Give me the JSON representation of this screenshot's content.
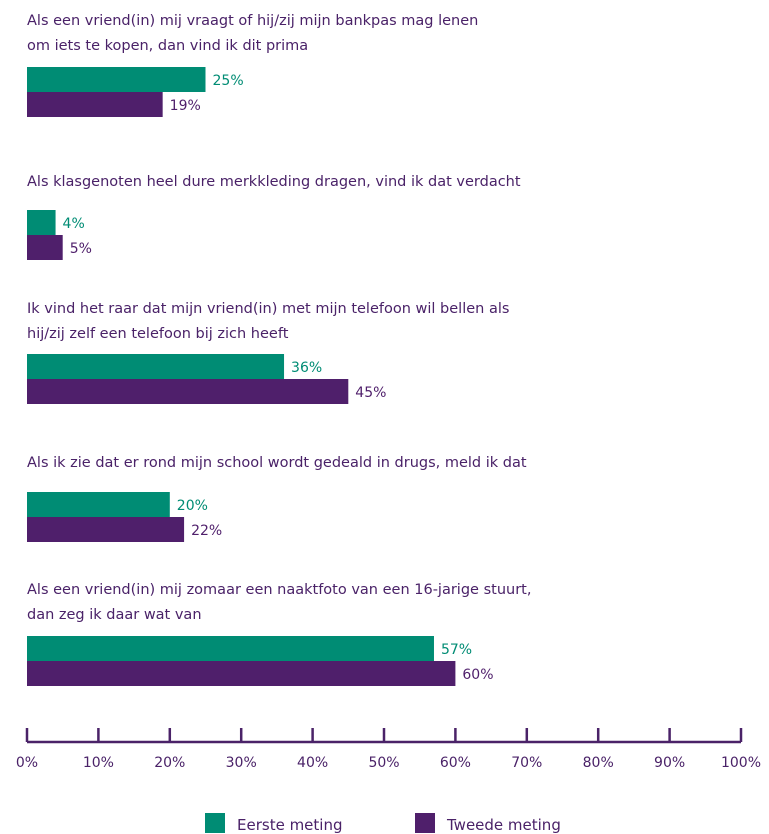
{
  "colors": {
    "series1": "#008c74",
    "series2": "#4f1f6b",
    "text": "#4a2268",
    "axis": "#4a2268"
  },
  "chart_data": {
    "type": "bar",
    "orientation": "horizontal",
    "categories": [
      [
        "Als een vriend(in) mij vraagt of hij/zij mijn bankpas mag lenen",
        "om iets te kopen, dan vind ik dit prima"
      ],
      [
        "Als klasgenoten heel dure merkkleding dragen, vind ik dat verdacht"
      ],
      [
        "Ik vind het raar dat mijn vriend(in) met mijn telefoon wil bellen als",
        "hij/zij zelf een telefoon bij zich heeft"
      ],
      [
        "Als ik zie dat er rond mijn school wordt gedeald in drugs, meld ik dat"
      ],
      [
        "Als een vriend(in) mij zomaar een naaktfoto van een 16-jarige stuurt,",
        "dan zeg ik daar wat van"
      ]
    ],
    "series": [
      {
        "name": "Eerste meting",
        "values": [
          25,
          4,
          36,
          20,
          57
        ],
        "labels": [
          "25%",
          "4%",
          "36%",
          "20%",
          "57%"
        ]
      },
      {
        "name": "Tweede meting",
        "values": [
          19,
          5,
          45,
          22,
          60
        ],
        "labels": [
          "19%",
          "5%",
          "45%",
          "22%",
          "60%"
        ]
      }
    ],
    "xlim": [
      0,
      100
    ],
    "xticks": [
      "0%",
      "10%",
      "20%",
      "30%",
      "40%",
      "50%",
      "60%",
      "70%",
      "80%",
      "90%",
      "100%"
    ],
    "grid": false,
    "legend_position": "bottom"
  }
}
